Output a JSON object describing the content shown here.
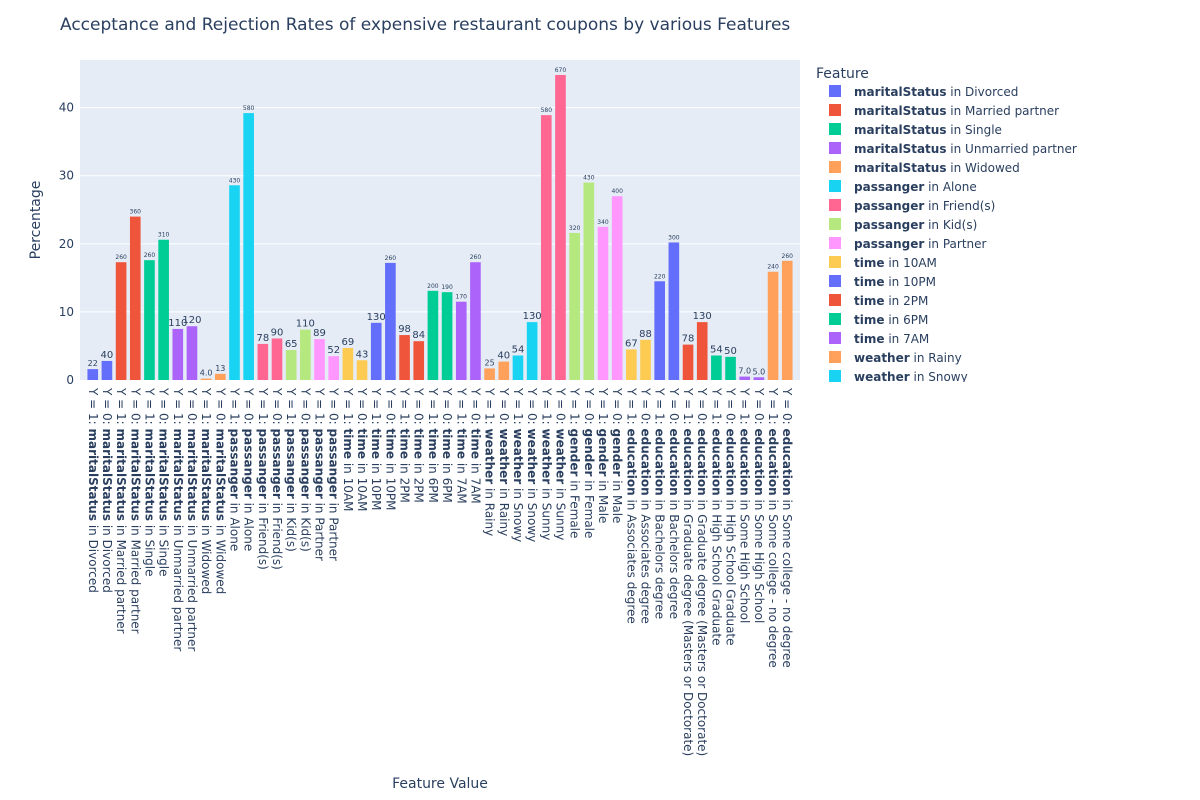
{
  "chart_data": {
    "type": "bar",
    "title": "Acceptance and Rejection Rates of expensive restaurant coupons by various Features",
    "xlabel": "Feature Value",
    "ylabel": "Percentage",
    "ylim": [
      0,
      47
    ],
    "yticks": [
      0,
      10,
      20,
      30,
      40
    ],
    "grid": true,
    "legend_title": "Feature",
    "legend_placement": "right",
    "series": [
      {
        "name": "maritalStatus in Divorced",
        "feature": "maritalStatus",
        "value": "Divorced",
        "color": "#636efa"
      },
      {
        "name": "maritalStatus in Married partner",
        "feature": "maritalStatus",
        "value": "Married partner",
        "color": "#ef553b"
      },
      {
        "name": "maritalStatus in Single",
        "feature": "maritalStatus",
        "value": "Single",
        "color": "#00cc96"
      },
      {
        "name": "maritalStatus in Unmarried partner",
        "feature": "maritalStatus",
        "value": "Unmarried partner",
        "color": "#ab63fa"
      },
      {
        "name": "maritalStatus in Widowed",
        "feature": "maritalStatus",
        "value": "Widowed",
        "color": "#ffa15a"
      },
      {
        "name": "passanger in Alone",
        "feature": "passanger",
        "value": "Alone",
        "color": "#19d3f3"
      },
      {
        "name": "passanger in Friend(s)",
        "feature": "passanger",
        "value": "Friend(s)",
        "color": "#ff6692"
      },
      {
        "name": "passanger in Kid(s)",
        "feature": "passanger",
        "value": "Kid(s)",
        "color": "#b6e880"
      },
      {
        "name": "passanger in Partner",
        "feature": "passanger",
        "value": "Partner",
        "color": "#ff97ff"
      },
      {
        "name": "time in 10AM",
        "feature": "time",
        "value": "10AM",
        "color": "#fecb52"
      },
      {
        "name": "time in 10PM",
        "feature": "time",
        "value": "10PM",
        "color": "#636efa"
      },
      {
        "name": "time in 2PM",
        "feature": "time",
        "value": "2PM",
        "color": "#ef553b"
      },
      {
        "name": "time in 6PM",
        "feature": "time",
        "value": "6PM",
        "color": "#00cc96"
      },
      {
        "name": "time in 7AM",
        "feature": "time",
        "value": "7AM",
        "color": "#ab63fa"
      },
      {
        "name": "weather in Rainy",
        "feature": "weather",
        "value": "Rainy",
        "color": "#ffa15a"
      },
      {
        "name": "weather in Snowy",
        "feature": "weather",
        "value": "Snowy",
        "color": "#19d3f3"
      },
      {
        "name": "weather in Sunny",
        "feature": "weather",
        "value": "Sunny",
        "color": "#ff6692"
      },
      {
        "name": "gender in Female",
        "feature": "gender",
        "value": "Female",
        "color": "#b6e880"
      },
      {
        "name": "gender in Male",
        "feature": "gender",
        "value": "Male",
        "color": "#ff97ff"
      },
      {
        "name": "education in Associates degree",
        "feature": "education",
        "value": "Associates degree",
        "color": "#fecb52"
      },
      {
        "name": "education in Bachelors degree",
        "feature": "education",
        "value": "Bachelors degree",
        "color": "#636efa"
      },
      {
        "name": "education in Graduate degree (Masters or Doctorate)",
        "feature": "education",
        "value": "Graduate degree (Masters or Doctorate)",
        "color": "#ef553b"
      },
      {
        "name": "education in High School Graduate",
        "feature": "education",
        "value": "High School Graduate",
        "color": "#00cc96"
      },
      {
        "name": "education in Some High School",
        "feature": "education",
        "value": "Some High School",
        "color": "#ab63fa"
      },
      {
        "name": "education in Some college - no degree",
        "feature": "education",
        "value": "Some college - no degree",
        "color": "#ffa15a"
      }
    ],
    "legend_visible_count": 16,
    "bars": [
      {
        "series": 0,
        "y_label": "Y = 1",
        "value": 1.6,
        "label": "22"
      },
      {
        "series": 0,
        "y_label": "Y = 0",
        "value": 2.8,
        "label": "40"
      },
      {
        "series": 1,
        "y_label": "Y = 1",
        "value": 17.3,
        "label": "260"
      },
      {
        "series": 1,
        "y_label": "Y = 0",
        "value": 24.0,
        "label": "360"
      },
      {
        "series": 2,
        "y_label": "Y = 1",
        "value": 17.6,
        "label": "260"
      },
      {
        "series": 2,
        "y_label": "Y = 0",
        "value": 20.6,
        "label": "310"
      },
      {
        "series": 3,
        "y_label": "Y = 1",
        "value": 7.5,
        "label": "110"
      },
      {
        "series": 3,
        "y_label": "Y = 0",
        "value": 7.9,
        "label": "120"
      },
      {
        "series": 4,
        "y_label": "Y = 1",
        "value": 0.2,
        "label": "4.0"
      },
      {
        "series": 4,
        "y_label": "Y = 0",
        "value": 0.9,
        "label": "13"
      },
      {
        "series": 5,
        "y_label": "Y = 1",
        "value": 28.6,
        "label": "430"
      },
      {
        "series": 5,
        "y_label": "Y = 0",
        "value": 39.2,
        "label": "580"
      },
      {
        "series": 6,
        "y_label": "Y = 1",
        "value": 5.3,
        "label": "78"
      },
      {
        "series": 6,
        "y_label": "Y = 0",
        "value": 6.1,
        "label": "90"
      },
      {
        "series": 7,
        "y_label": "Y = 1",
        "value": 4.4,
        "label": "65"
      },
      {
        "series": 7,
        "y_label": "Y = 0",
        "value": 7.4,
        "label": "110"
      },
      {
        "series": 8,
        "y_label": "Y = 1",
        "value": 6.0,
        "label": "89"
      },
      {
        "series": 8,
        "y_label": "Y = 0",
        "value": 3.5,
        "label": "52"
      },
      {
        "series": 9,
        "y_label": "Y = 1",
        "value": 4.7,
        "label": "69"
      },
      {
        "series": 9,
        "y_label": "Y = 0",
        "value": 2.9,
        "label": "43"
      },
      {
        "series": 10,
        "y_label": "Y = 1",
        "value": 8.4,
        "label": "130"
      },
      {
        "series": 10,
        "y_label": "Y = 0",
        "value": 17.2,
        "label": "260"
      },
      {
        "series": 11,
        "y_label": "Y = 1",
        "value": 6.6,
        "label": "98"
      },
      {
        "series": 11,
        "y_label": "Y = 0",
        "value": 5.7,
        "label": "84"
      },
      {
        "series": 12,
        "y_label": "Y = 1",
        "value": 13.1,
        "label": "200"
      },
      {
        "series": 12,
        "y_label": "Y = 0",
        "value": 12.9,
        "label": "190"
      },
      {
        "series": 13,
        "y_label": "Y = 1",
        "value": 11.5,
        "label": "170"
      },
      {
        "series": 13,
        "y_label": "Y = 0",
        "value": 17.3,
        "label": "260"
      },
      {
        "series": 14,
        "y_label": "Y = 1",
        "value": 1.7,
        "label": "25"
      },
      {
        "series": 14,
        "y_label": "Y = 0",
        "value": 2.7,
        "label": "40"
      },
      {
        "series": 15,
        "y_label": "Y = 1",
        "value": 3.6,
        "label": "54"
      },
      {
        "series": 15,
        "y_label": "Y = 0",
        "value": 8.5,
        "label": "130"
      },
      {
        "series": 16,
        "y_label": "Y = 1",
        "value": 38.9,
        "label": "580"
      },
      {
        "series": 16,
        "y_label": "Y = 0",
        "value": 44.8,
        "label": "670"
      },
      {
        "series": 17,
        "y_label": "Y = 1",
        "value": 21.6,
        "label": "320"
      },
      {
        "series": 17,
        "y_label": "Y = 0",
        "value": 29.0,
        "label": "430"
      },
      {
        "series": 18,
        "y_label": "Y = 1",
        "value": 22.5,
        "label": "340"
      },
      {
        "series": 18,
        "y_label": "Y = 0",
        "value": 27.0,
        "label": "400"
      },
      {
        "series": 19,
        "y_label": "Y = 1",
        "value": 4.5,
        "label": "67"
      },
      {
        "series": 19,
        "y_label": "Y = 0",
        "value": 5.9,
        "label": "88"
      },
      {
        "series": 20,
        "y_label": "Y = 1",
        "value": 14.5,
        "label": "220"
      },
      {
        "series": 20,
        "y_label": "Y = 0",
        "value": 20.2,
        "label": "300"
      },
      {
        "series": 21,
        "y_label": "Y = 1",
        "value": 5.2,
        "label": "78"
      },
      {
        "series": 21,
        "y_label": "Y = 0",
        "value": 8.5,
        "label": "130"
      },
      {
        "series": 22,
        "y_label": "Y = 1",
        "value": 3.6,
        "label": "54"
      },
      {
        "series": 22,
        "y_label": "Y = 0",
        "value": 3.4,
        "label": "50"
      },
      {
        "series": 23,
        "y_label": "Y = 1",
        "value": 0.5,
        "label": "7.0"
      },
      {
        "series": 23,
        "y_label": "Y = 0",
        "value": 0.4,
        "label": "5.0"
      },
      {
        "series": 24,
        "y_label": "Y = 1",
        "value": 15.9,
        "label": "240"
      },
      {
        "series": 24,
        "y_label": "Y = 0",
        "value": 17.5,
        "label": "260"
      }
    ]
  }
}
